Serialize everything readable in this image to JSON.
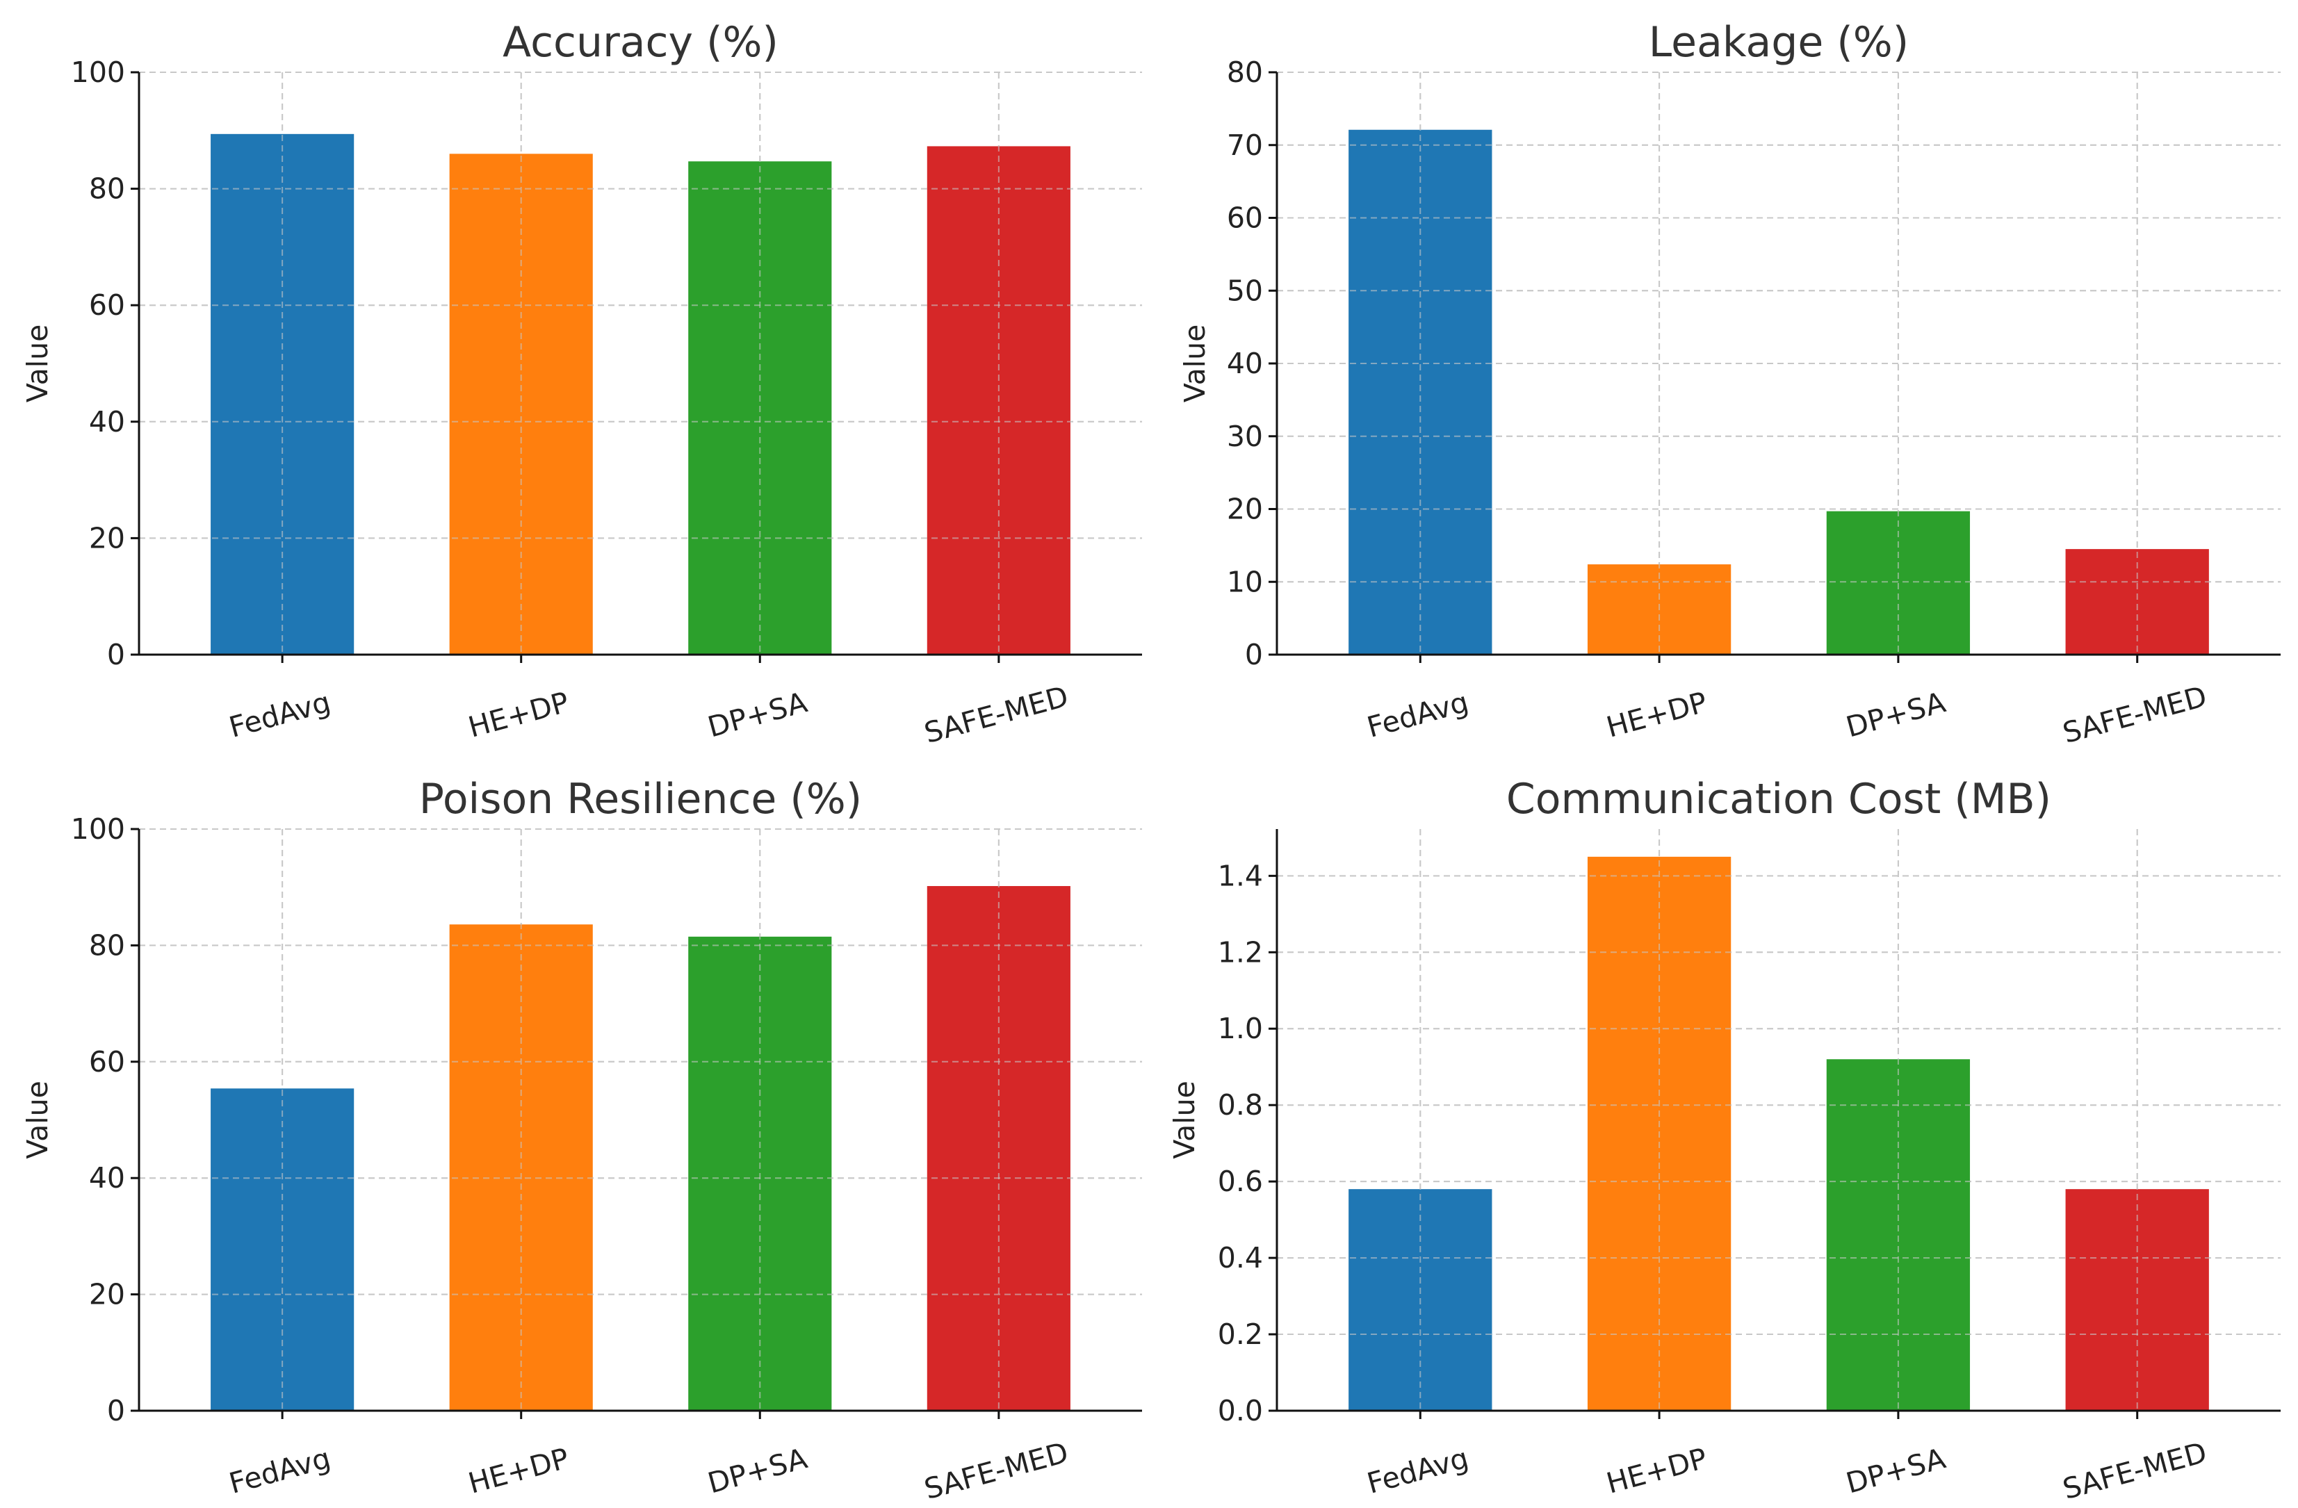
{
  "chart_data": [
    {
      "type": "bar",
      "title": "Accuracy (%)",
      "ylabel": "Value",
      "xlabel": "",
      "categories": [
        "FedAvg",
        "HE+DP",
        "DP+SA",
        "SAFE-MED"
      ],
      "values": [
        89.4,
        86.0,
        84.7,
        87.3
      ],
      "ylim": [
        0,
        100
      ],
      "yticks": [
        "0",
        "20",
        "40",
        "60",
        "80",
        "100"
      ],
      "ytick_values": [
        0,
        20,
        40,
        60,
        80,
        100
      ],
      "grid": true,
      "colors": [
        "#1f77b4",
        "#ff7f0e",
        "#2ca02c",
        "#d62728"
      ]
    },
    {
      "type": "bar",
      "title": "Leakage (%)",
      "ylabel": "Value",
      "xlabel": "",
      "categories": [
        "FedAvg",
        "HE+DP",
        "DP+SA",
        "SAFE-MED"
      ],
      "values": [
        72.1,
        12.4,
        19.7,
        14.5
      ],
      "ylim": [
        0,
        80
      ],
      "yticks": [
        "0",
        "10",
        "20",
        "30",
        "40",
        "50",
        "60",
        "70",
        "80"
      ],
      "ytick_values": [
        0,
        10,
        20,
        30,
        40,
        50,
        60,
        70,
        80
      ],
      "grid": true,
      "colors": [
        "#1f77b4",
        "#ff7f0e",
        "#2ca02c",
        "#d62728"
      ]
    },
    {
      "type": "bar",
      "title": "Poison Resilience (%)",
      "ylabel": "Value",
      "xlabel": "",
      "categories": [
        "FedAvg",
        "HE+DP",
        "DP+SA",
        "SAFE-MED"
      ],
      "values": [
        55.4,
        83.6,
        81.5,
        90.2
      ],
      "ylim": [
        0,
        100
      ],
      "yticks": [
        "0",
        "20",
        "40",
        "60",
        "80",
        "100"
      ],
      "ytick_values": [
        0,
        20,
        40,
        60,
        80,
        100
      ],
      "grid": true,
      "colors": [
        "#1f77b4",
        "#ff7f0e",
        "#2ca02c",
        "#d62728"
      ]
    },
    {
      "type": "bar",
      "title": "Communication Cost (MB)",
      "ylabel": "Value",
      "xlabel": "",
      "categories": [
        "FedAvg",
        "HE+DP",
        "DP+SA",
        "SAFE-MED"
      ],
      "values": [
        0.58,
        1.45,
        0.92,
        0.58
      ],
      "ylim": [
        0,
        1.5225
      ],
      "yticks": [
        "0.0",
        "0.2",
        "0.4",
        "0.6",
        "0.8",
        "1.0",
        "1.2",
        "1.4"
      ],
      "ytick_values": [
        0,
        0.2,
        0.4,
        0.6,
        0.8,
        1.0,
        1.2,
        1.4
      ],
      "grid": true,
      "colors": [
        "#1f77b4",
        "#ff7f0e",
        "#2ca02c",
        "#d62728"
      ]
    }
  ]
}
